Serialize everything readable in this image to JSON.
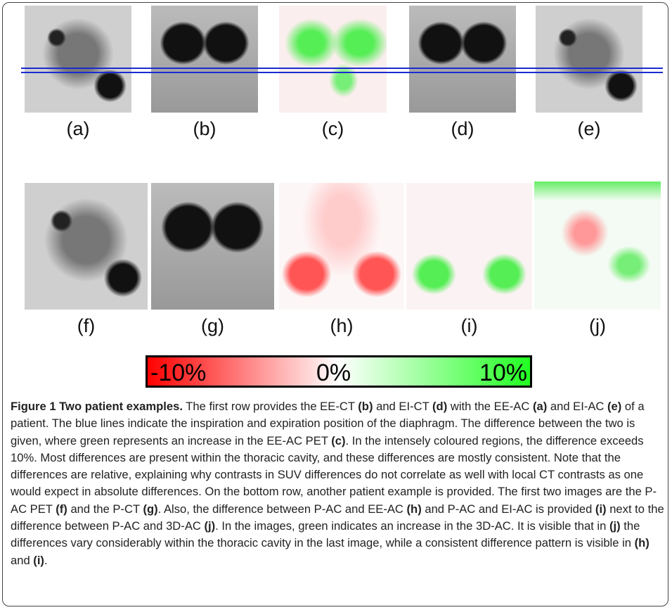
{
  "figure": {
    "panels": [
      "(a)",
      "(b)",
      "(c)",
      "(d)",
      "(e)",
      "(f)",
      "(g)",
      "(h)",
      "(i)",
      "(j)"
    ],
    "colorbar": {
      "labels": [
        "-10%",
        "0%",
        "10%"
      ]
    },
    "caption": {
      "segments": [
        {
          "text": "Figure 1 Two patient examples.",
          "bold": true
        },
        {
          "text": " The first row provides the EE-CT ",
          "bold": false
        },
        {
          "text": "(b)",
          "bold": true
        },
        {
          "text": " and EI-CT ",
          "bold": false
        },
        {
          "text": "(d)",
          "bold": true
        },
        {
          "text": " with the EE-AC ",
          "bold": false
        },
        {
          "text": "(a)",
          "bold": true
        },
        {
          "text": " and EI-AC ",
          "bold": false
        },
        {
          "text": "(e)",
          "bold": true
        },
        {
          "text": " of a patient. The blue lines indicate the inspiration and expiration position of the diaphragm. The difference between the two is given, where green represents an increase in the EE-AC PET ",
          "bold": false
        },
        {
          "text": "(c)",
          "bold": true
        },
        {
          "text": ". In the intensely coloured regions, the difference exceeds 10%. Most differences are present within the thoracic cavity, and these differences are mostly consistent. Note that the differences are relative, explaining why contrasts in SUV differences do not correlate as well with local CT contrasts as one would expect in absolute differences. On the bottom row, another patient example is provided. The first two images are the P-AC PET ",
          "bold": false
        },
        {
          "text": "(f)",
          "bold": true
        },
        {
          "text": " and the P-CT ",
          "bold": false
        },
        {
          "text": "(g)",
          "bold": true
        },
        {
          "text": ". Also, the difference between P-AC and EE-AC ",
          "bold": false
        },
        {
          "text": "(h)",
          "bold": true
        },
        {
          "text": " and P-AC and EI-AC is provided ",
          "bold": false
        },
        {
          "text": "(i)",
          "bold": true
        },
        {
          "text": " next to the difference between P-AC and 3D-AC ",
          "bold": false
        },
        {
          "text": "(j)",
          "bold": true
        },
        {
          "text": ". In the images, green indicates an increase in the 3D-AC. It is visible that in ",
          "bold": false
        },
        {
          "text": "(j)",
          "bold": true
        },
        {
          "text": " the differences vary considerably within the thoracic cavity in the last image, while a consistent difference pattern is visible in ",
          "bold": false
        },
        {
          "text": "(h)",
          "bold": true
        },
        {
          "text": " and ",
          "bold": false
        },
        {
          "text": "(i)",
          "bold": true
        },
        {
          "text": ".",
          "bold": false
        }
      ]
    }
  }
}
